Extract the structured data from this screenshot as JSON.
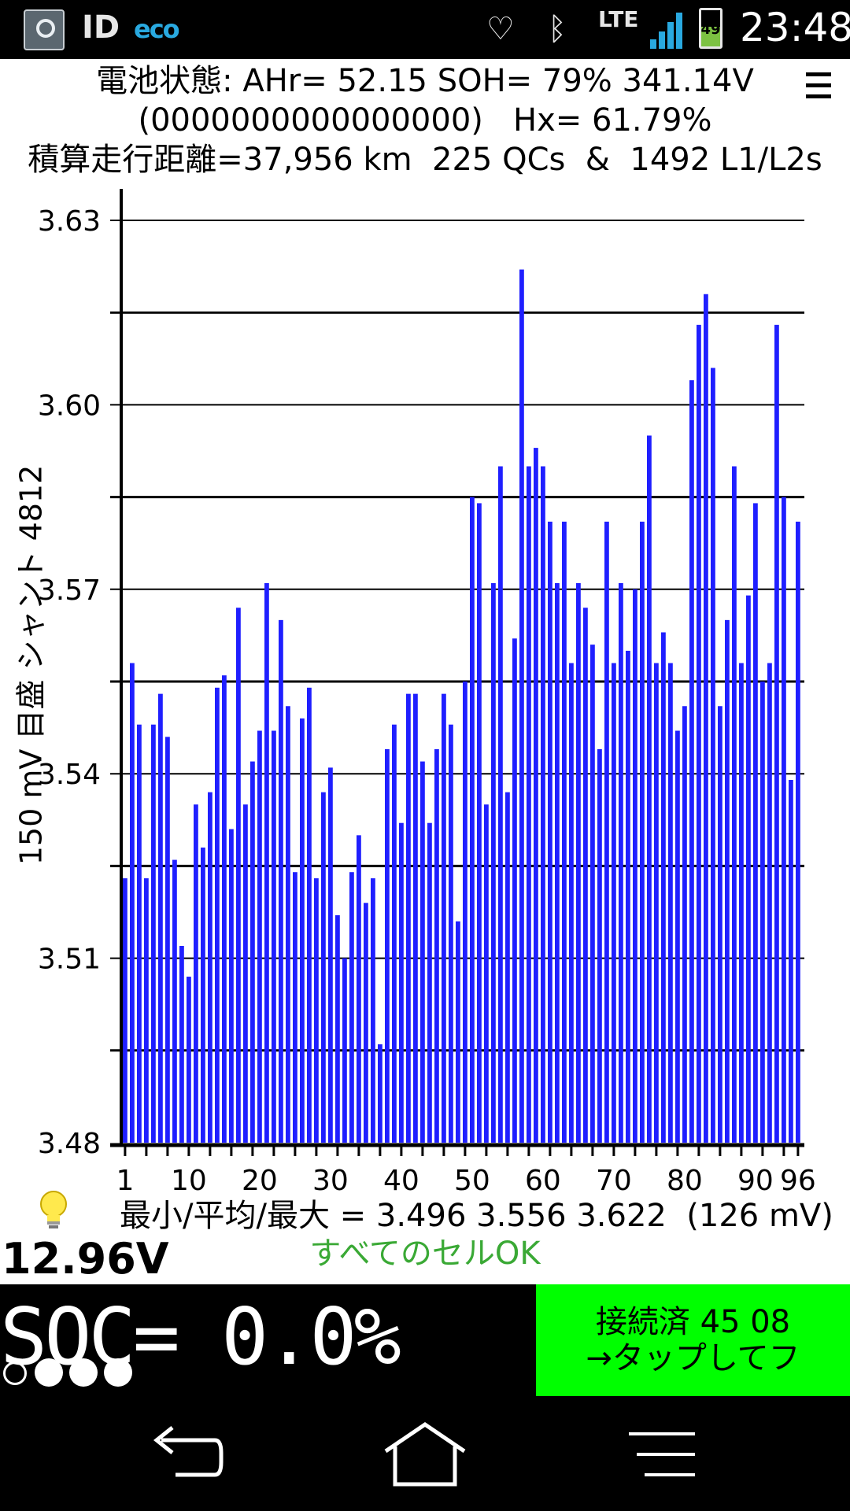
{
  "status_bar": {
    "id_label": "ID",
    "eco_label": "eco",
    "network": "LTE",
    "battery_level": "49",
    "time": "23:48",
    "signal_color": "#29a9e0",
    "icons": [
      "app-icon",
      "heart-icon",
      "bluetooth-icon",
      "signal-icon",
      "battery-icon"
    ]
  },
  "header": {
    "line1": "電池状態: AHr= 52.15 SOH= 79% 341.14V",
    "line2": "(0000000000000000)   Hx= 61.79%",
    "line3": "積算走行距離=37,956 km  225 QCs  &  1492 L1/L2s"
  },
  "chart_data": {
    "type": "bar",
    "ylabel": "150 mV 目盛  シャント 4812",
    "ylim": [
      3.48,
      3.63
    ],
    "y_ticks": [
      "3.63",
      "3.60",
      "3.57",
      "3.54",
      "3.51",
      "3.48"
    ],
    "x_tick_labels": [
      "1",
      "10",
      "20",
      "30",
      "40",
      "50",
      "60",
      "70",
      "80",
      "90",
      "96"
    ],
    "bar_color": "#1f1fff",
    "categories": [
      1,
      2,
      3,
      4,
      5,
      6,
      7,
      8,
      9,
      10,
      11,
      12,
      13,
      14,
      15,
      16,
      17,
      18,
      19,
      20,
      21,
      22,
      23,
      24,
      25,
      26,
      27,
      28,
      29,
      30,
      31,
      32,
      33,
      34,
      35,
      36,
      37,
      38,
      39,
      40,
      41,
      42,
      43,
      44,
      45,
      46,
      47,
      48,
      49,
      50,
      51,
      52,
      53,
      54,
      55,
      56,
      57,
      58,
      59,
      60,
      61,
      62,
      63,
      64,
      65,
      66,
      67,
      68,
      69,
      70,
      71,
      72,
      73,
      74,
      75,
      76,
      77,
      78,
      79,
      80,
      81,
      82,
      83,
      84,
      85,
      86,
      87,
      88,
      89,
      90,
      91,
      92,
      93,
      94,
      95,
      96
    ],
    "values": [
      3.523,
      3.558,
      3.548,
      3.523,
      3.548,
      3.553,
      3.546,
      3.526,
      3.512,
      3.507,
      3.535,
      3.528,
      3.537,
      3.554,
      3.556,
      3.531,
      3.567,
      3.535,
      3.542,
      3.547,
      3.571,
      3.547,
      3.565,
      3.551,
      3.524,
      3.549,
      3.554,
      3.523,
      3.537,
      3.541,
      3.517,
      3.51,
      3.524,
      3.53,
      3.519,
      3.523,
      3.496,
      3.544,
      3.548,
      3.532,
      3.553,
      3.553,
      3.542,
      3.532,
      3.544,
      3.553,
      3.548,
      3.516,
      3.555,
      3.585,
      3.584,
      3.535,
      3.571,
      3.59,
      3.537,
      3.562,
      3.622,
      3.59,
      3.593,
      3.59,
      3.581,
      3.571,
      3.581,
      3.558,
      3.571,
      3.567,
      3.561,
      3.544,
      3.581,
      3.558,
      3.571,
      3.56,
      3.57,
      3.581,
      3.595,
      3.558,
      3.563,
      3.558,
      3.547,
      3.551,
      3.604,
      3.613,
      3.618,
      3.606,
      3.551,
      3.565,
      3.59,
      3.558,
      3.569,
      3.584,
      3.555,
      3.558,
      3.613,
      3.585,
      3.539,
      3.581
    ]
  },
  "stats": {
    "text": "最小/平均/最大 = 3.496 3.556 3.622  (126 mV)",
    "status": "すべてのセルOK",
    "status_color": "#3aa935"
  },
  "aux_voltage": "12.96V",
  "soc": {
    "label": "SOC= 0.0%",
    "dots_filled": 3,
    "dots_total": 4
  },
  "connect_button": {
    "line1": "接続済 45 08",
    "line2": "→タップしてフ",
    "color": "#00ff00"
  },
  "navbar": {
    "buttons": [
      "back-icon",
      "home-icon",
      "menu-icon"
    ]
  }
}
